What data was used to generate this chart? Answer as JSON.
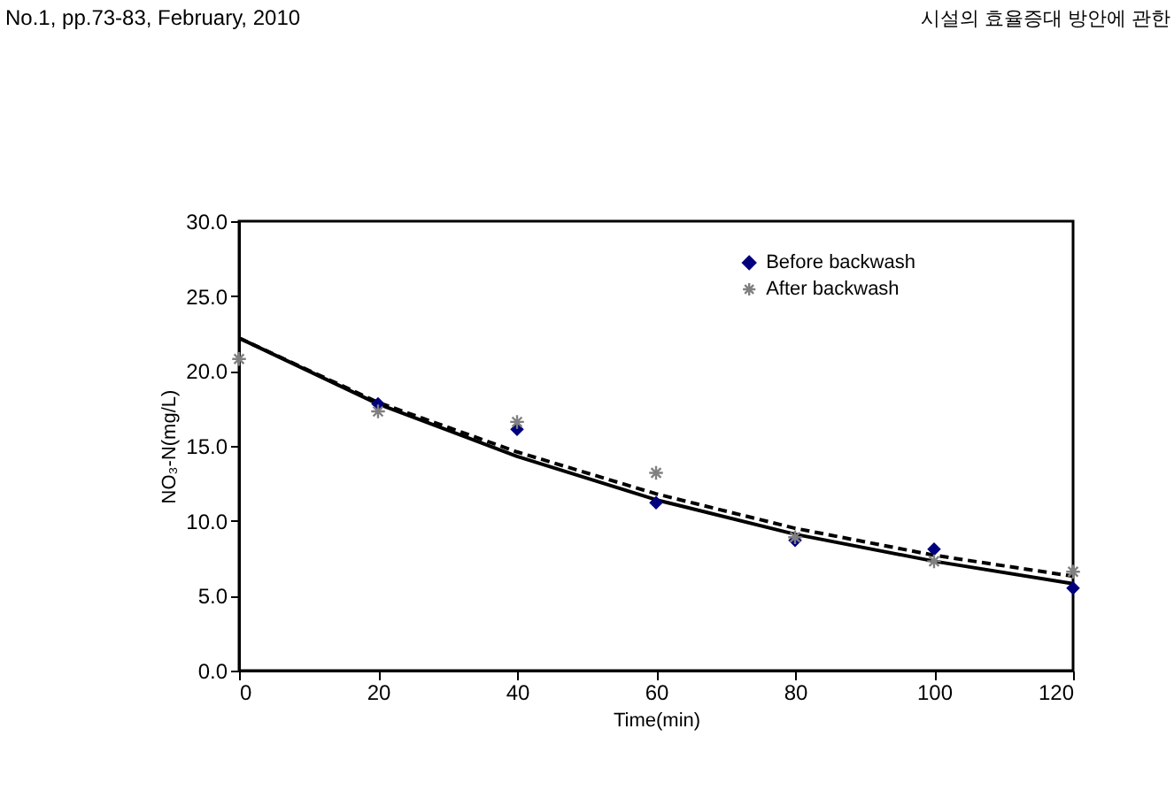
{
  "chart_data": {
    "type": "scatter",
    "xlabel": "Time(min)",
    "ylabel": "NO₃-N(mg/L)",
    "annotations": [
      "No.1, pp.73-83, February, 2010",
      "시설의 효율증대 방안에 관한"
    ],
    "x": [
      0,
      20,
      40,
      60,
      80,
      100,
      120
    ],
    "xlim": [
      0,
      120
    ],
    "xticks": [
      0,
      20,
      40,
      60,
      80,
      100,
      120
    ],
    "ylim": [
      0,
      30
    ],
    "yticks": [
      {
        "value": 0,
        "label": "0.0"
      },
      {
        "value": 5,
        "label": "5.0"
      },
      {
        "value": 10,
        "label": "10.0"
      },
      {
        "value": 15,
        "label": "15.0"
      },
      {
        "value": 20,
        "label": "20.0"
      },
      {
        "value": 25,
        "label": "25.0"
      },
      {
        "value": 30,
        "label": "30.0"
      }
    ],
    "grid": false,
    "legend": "top",
    "series": [
      {
        "name": "Before backwash",
        "color": "#00007f",
        "marker": "diamond",
        "values": [
          null,
          17.8,
          16.1,
          11.2,
          8.7,
          8.1,
          5.5
        ]
      },
      {
        "name": "After backwash",
        "color": "#808080",
        "marker": "cross",
        "values": [
          20.8,
          17.3,
          16.6,
          13.2,
          8.9,
          7.3,
          6.6
        ]
      },
      {
        "type": "line",
        "color": "#000000",
        "line_style": "solid",
        "marker": "none",
        "x": [
          0,
          20,
          40,
          60,
          80,
          100,
          120
        ],
        "values": [
          22.2,
          17.8,
          14.3,
          11.4,
          9.1,
          7.3,
          5.8
        ]
      },
      {
        "type": "line",
        "color": "#000000",
        "line_style": "dashed",
        "marker": "none",
        "x": [
          0,
          20,
          40,
          60,
          80,
          100,
          120
        ],
        "values": [
          22.2,
          17.9,
          14.6,
          11.8,
          9.5,
          7.7,
          6.3
        ]
      }
    ]
  }
}
